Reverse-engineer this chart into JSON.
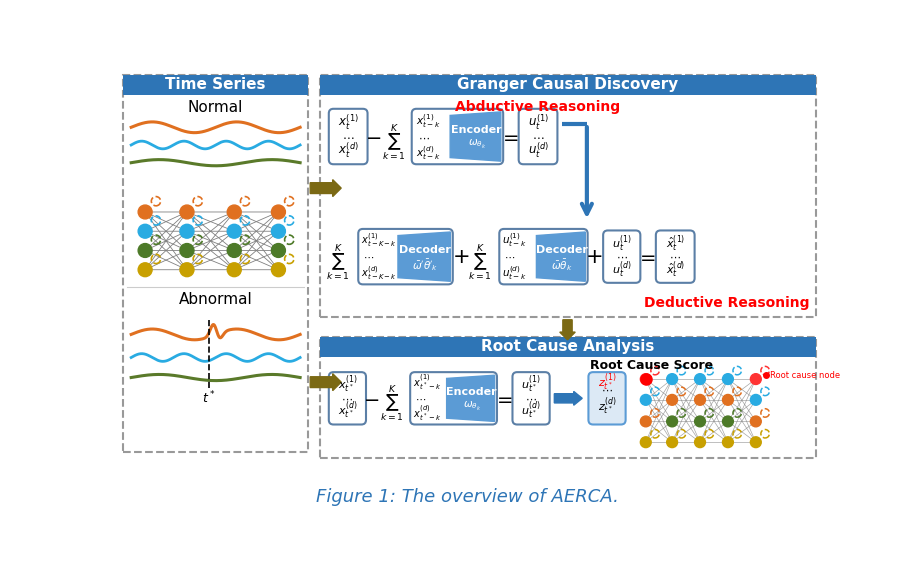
{
  "title": "Figure 1: The overview of AERCA.",
  "title_color": "#2E75B6",
  "bg_color": "#ffffff",
  "outer_bg": "#ffffff",
  "left_panel_title": "Time Series",
  "left_panel_header_color": "#2E75B6",
  "granger_title": "Granger Causal Discovery",
  "granger_header_color": "#2E75B6",
  "rca_title": "Root Cause Analysis",
  "rca_header_color": "#2E75B6",
  "normal_label": "Normal",
  "abnormal_label": "Abnormal",
  "tstar_label": "$t^*$",
  "abductive_label": "Abductive Reasoning",
  "abductive_color": "#FF0000",
  "deductive_label": "Deductive Reasoning",
  "deductive_color": "#FF0000",
  "root_cause_score_label": "Root Cause Score",
  "root_cause_node_label": "Root cause node",
  "arrow_color": "#7B6914",
  "blue_arrow_color": "#2E75B6",
  "wave_colors": [
    "#E07020",
    "#29ABE2",
    "#5A7A2A"
  ],
  "node_colors_normal": [
    "#E07020",
    "#29ABE2",
    "#4D7A28",
    "#C8A000"
  ],
  "encoder_blue": "#5B9BD5",
  "box_ec": "#5B7FA6"
}
